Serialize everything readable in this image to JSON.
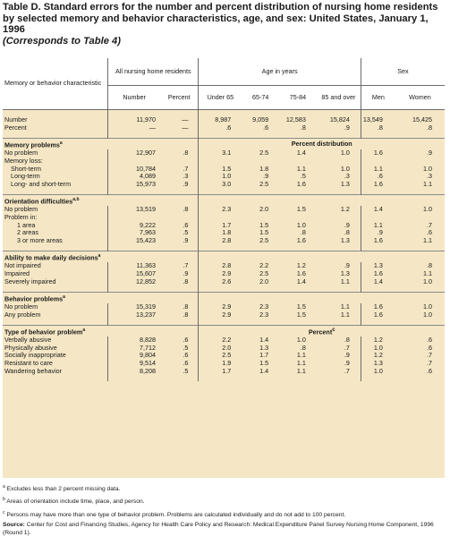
{
  "title": {
    "main": "Table D. Standard errors for the number and percent distribution of nursing home residents by selected memory and behavior characteristics, age, and sex: United States, January 1, 1996",
    "sub": "(Corresponds to Table 4)"
  },
  "header": {
    "row_label": "Memory or behavior characteristic",
    "all_residents": "All nursing home residents",
    "age_group": "Age in years",
    "sex_group": "Sex",
    "columns": [
      "Number",
      "Percent",
      "Under 65",
      "65-74",
      "75-84",
      "85 and over",
      "Men",
      "Women"
    ]
  },
  "top_rows": [
    {
      "label": "Number",
      "values": [
        "11,970",
        "—",
        "8,987",
        "9,059",
        "12,583",
        "15,824",
        "13,549",
        "15,425"
      ]
    },
    {
      "label": "Percent",
      "values": [
        "—",
        "—",
        ".6",
        ".6",
        ".8",
        ".9",
        ".8",
        ".8"
      ]
    }
  ],
  "sections": [
    {
      "title": "Memory problems",
      "sup": "a",
      "group_label": "Percent distribution",
      "rows": [
        {
          "label": "No problem",
          "indent": 0,
          "values": [
            "12,907",
            ".8",
            "3.1",
            "2.5",
            "1.4",
            "1.0",
            "1.6",
            ".9"
          ]
        },
        {
          "label": "Memory loss:",
          "indent": 0,
          "values": []
        },
        {
          "label": "Short-term",
          "indent": 1,
          "values": [
            "10,784",
            ".7",
            "1.5",
            "1.8",
            "1.1",
            "1.0",
            "1.1",
            "1.0"
          ]
        },
        {
          "label": "Long-term",
          "indent": 1,
          "values": [
            "4,089",
            ".3",
            "1.0",
            ".9",
            ".5",
            ".3",
            ".6",
            ".3"
          ]
        },
        {
          "label": "Long- and short-term",
          "indent": 1,
          "values": [
            "15,973",
            ".9",
            "3.0",
            "2.5",
            "1.6",
            "1.3",
            "1.6",
            "1.1"
          ]
        }
      ]
    },
    {
      "title": "Orientation difficulties",
      "sup": "a,b",
      "group_label": "",
      "rows": [
        {
          "label": "No problem",
          "indent": 0,
          "values": [
            "13,519",
            ".8",
            "2.3",
            "2.0",
            "1.5",
            "1.2",
            "1.4",
            "1.0"
          ]
        },
        {
          "label": "Problem in:",
          "indent": 0,
          "values": []
        },
        {
          "label": "1 area",
          "indent": 2,
          "values": [
            "9,222",
            ".6",
            "1.7",
            "1.5",
            "1.0",
            ".9",
            "1.1",
            ".7"
          ]
        },
        {
          "label": "2 areas",
          "indent": 2,
          "values": [
            "7,963",
            ".5",
            "1.8",
            "1.5",
            ".8",
            ".8",
            ".9",
            ".6"
          ]
        },
        {
          "label": "3 or more areas",
          "indent": 2,
          "values": [
            "15,423",
            ".9",
            "2.8",
            "2.5",
            "1.6",
            "1.3",
            "1.6",
            "1.1"
          ]
        }
      ]
    },
    {
      "title": "Ability to make daily decisions",
      "sup": "a",
      "group_label": "",
      "rows": [
        {
          "label": "Not impaired",
          "indent": 0,
          "values": [
            "11,363",
            ".7",
            "2.8",
            "2.2",
            "1.2",
            ".9",
            "1.3",
            ".8"
          ]
        },
        {
          "label": "Impaired",
          "indent": 0,
          "values": [
            "15,607",
            ".9",
            "2.9",
            "2.5",
            "1.6",
            "1.3",
            "1.6",
            "1.1"
          ]
        },
        {
          "label": "Severely impaired",
          "indent": 0,
          "values": [
            "12,852",
            ".8",
            "2.6",
            "2.0",
            "1.4",
            "1.1",
            "1.4",
            "1.0"
          ]
        }
      ]
    },
    {
      "title": "Behavior problems",
      "sup": "a",
      "group_label": "",
      "rows": [
        {
          "label": "No problem",
          "indent": 0,
          "values": [
            "15,319",
            ".8",
            "2.9",
            "2.3",
            "1.5",
            "1.1",
            "1.6",
            "1.0"
          ]
        },
        {
          "label": "Any problem",
          "indent": 0,
          "values": [
            "13,237",
            ".8",
            "2.9",
            "2.3",
            "1.5",
            "1.1",
            "1.6",
            "1.0"
          ]
        }
      ]
    },
    {
      "title": "Type of behavior problem",
      "sup": "a",
      "group_label": "Percent",
      "group_sup": "c",
      "rows": [
        {
          "label": "Verbally abusive",
          "indent": 0,
          "values": [
            "8,828",
            ".6",
            "2.2",
            "1.4",
            "1.0",
            ".8",
            "1.2",
            ".6"
          ]
        },
        {
          "label": "Physically abusive",
          "indent": 0,
          "values": [
            "7,712",
            ".5",
            "2.0",
            "1.3",
            ".8",
            ".7",
            "1.0",
            ".6"
          ]
        },
        {
          "label": "Socially inappropriate",
          "indent": 0,
          "values": [
            "9,804",
            ".6",
            "2.5",
            "1.7",
            "1.1",
            ".9",
            "1.2",
            ".7"
          ]
        },
        {
          "label": "Resistant to care",
          "indent": 0,
          "values": [
            "9,514",
            ".6",
            "1.9",
            "1.5",
            "1.1",
            ".9",
            "1.3",
            ".7"
          ]
        },
        {
          "label": "Wandering behavior",
          "indent": 0,
          "values": [
            "8,208",
            ".5",
            "1.7",
            "1.4",
            "1.1",
            ".7",
            "1.0",
            ".6"
          ]
        }
      ]
    }
  ],
  "footnotes": [
    {
      "mark": "a",
      "text": "Excludes less than 2 percent missing data."
    },
    {
      "mark": "b",
      "text": "Areas of orientation include time, place, and person."
    },
    {
      "mark": "c",
      "text": "Persons may have more than one type of behavior problem. Problems are calculated individually and do not add to 100 percent."
    }
  ],
  "source": {
    "label": "Source:",
    "text": "Center for Cost and Financing Studies, Agency for Health Care Policy and Research: Medical Expenditure Panel Survey Nursing Home Component, 1996 (Round 1)."
  }
}
